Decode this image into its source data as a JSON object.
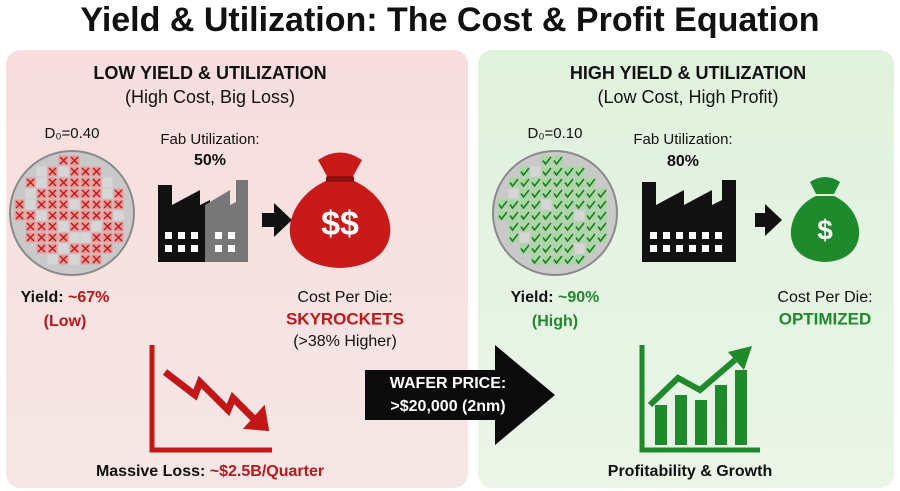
{
  "header": {
    "title": "Yield & Utilization: The Cost & Profit Equation"
  },
  "left": {
    "heading": "LOW YIELD & UTILIZATION",
    "subheading": "(High Cost, Big Loss)",
    "defect_density": "D₀=0.40",
    "fab_label": "Fab Utilization:",
    "fab_value": "50%",
    "yield_label": "Yield:",
    "yield_value": "~67%",
    "yield_note": "(Low)",
    "bag_symbol": "$$",
    "cost_label": "Cost Per Die:",
    "cost_value": "SKYROCKETS",
    "cost_note": "(>38% Higher)",
    "footer_label": "Massive Loss:",
    "footer_value": "~$2.5B/Quarter"
  },
  "center": {
    "line1": "WAFER PRICE:",
    "line2": ">$20,000 (2nm)"
  },
  "right": {
    "heading": "HIGH YIELD & UTILIZATION",
    "subheading": "(Low Cost, High Profit)",
    "defect_density": "D₀=0.10",
    "fab_label": "Fab Utilization:",
    "fab_value": "80%",
    "yield_label": "Yield:",
    "yield_value": "~90%",
    "yield_note": "(High)",
    "bag_symbol": "$",
    "cost_label": "Cost Per Die:",
    "cost_value": "OPTIMIZED",
    "footer": "Profitability & Growth"
  }
}
